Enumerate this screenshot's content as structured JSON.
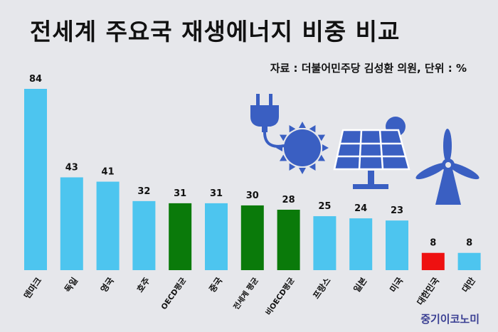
{
  "title": "전세계 주요국 재생에너지 비중 비교",
  "source": "자료 : 더불어민주당 김성환 의원, 단위 : %",
  "brand": "중기이코노미",
  "colors": {
    "background": "#e6e7eb",
    "bar_default": "#4dc5ef",
    "bar_average": "#0a7a0a",
    "bar_korea": "#ee1111",
    "icon": "#3a5fc2"
  },
  "icons": [
    "plug-icon",
    "sun-icon",
    "solar-panel-icon",
    "wind-turbine-icon"
  ],
  "chart_data": {
    "type": "bar",
    "categories": [
      "덴마크",
      "독일",
      "영국",
      "호주",
      "OECD평균",
      "중국",
      "전세계 평균",
      "비OECD평균",
      "프랑스",
      "일본",
      "미국",
      "대한민국",
      "대만"
    ],
    "values": [
      84,
      43,
      41,
      32,
      31,
      31,
      30,
      28,
      25,
      24,
      23,
      8,
      8
    ],
    "bar_colors": [
      "#4dc5ef",
      "#4dc5ef",
      "#4dc5ef",
      "#4dc5ef",
      "#0a7a0a",
      "#4dc5ef",
      "#0a7a0a",
      "#0a7a0a",
      "#4dc5ef",
      "#4dc5ef",
      "#4dc5ef",
      "#ee1111",
      "#4dc5ef"
    ],
    "ylim": [
      0,
      84
    ],
    "grid": false,
    "legend": "none",
    "data_labels": true,
    "title": "전세계 주요국 재생에너지 비중 비교",
    "xlabel": "",
    "ylabel": ""
  }
}
